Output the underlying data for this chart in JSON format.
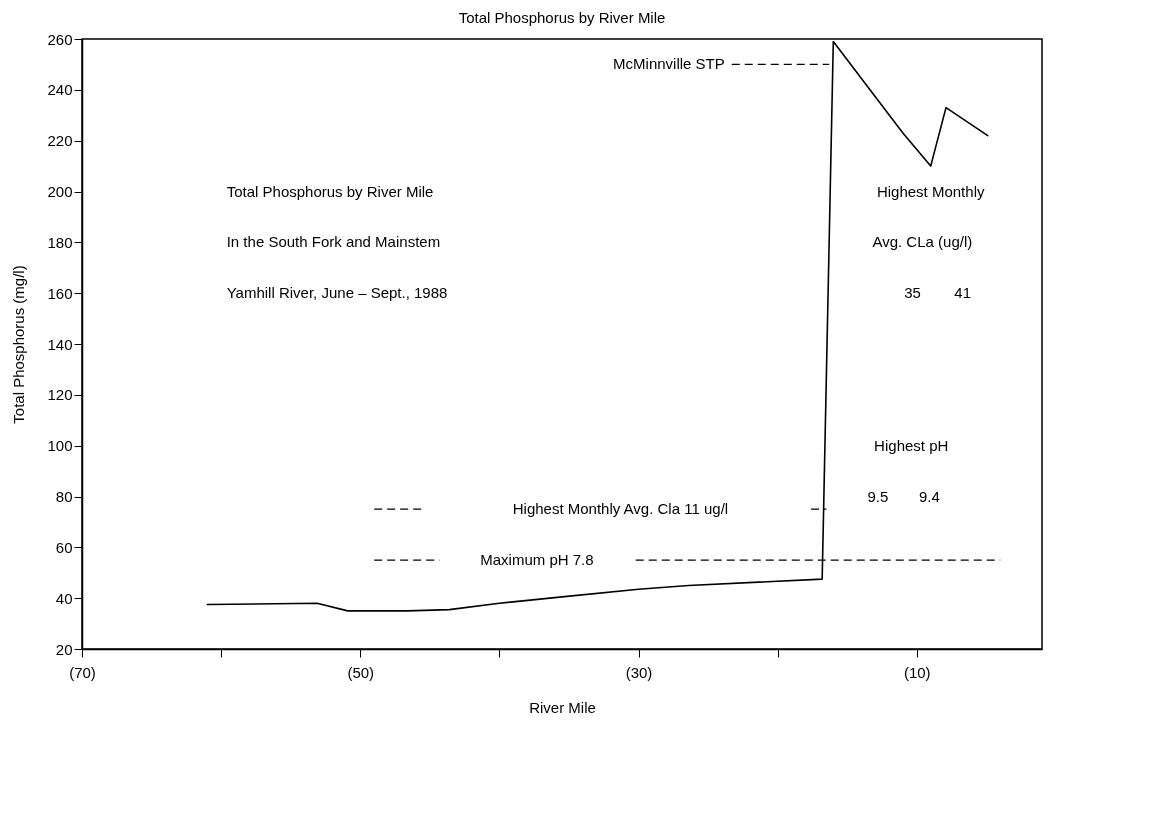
{
  "chart_data": {
    "type": "line",
    "title": "Total Phosphorus by River Mile",
    "xlabel": "River Mile",
    "ylabel": "Total Phosphorus (mg/l)",
    "series": [
      {
        "color": "#000000",
        "x": [
          -61.0,
          -53.1,
          -50.9,
          -46.6,
          -43.6,
          -40.0,
          -35.5,
          -30.0,
          -26.4,
          -16.8,
          -16.0,
          -11.0,
          -9.0,
          -7.9,
          -4.9
        ],
        "values": [
          37.5,
          38,
          35,
          35,
          35.5,
          38,
          40.5,
          43.5,
          45,
          47.5,
          259,
          223,
          210,
          233,
          222
        ]
      }
    ],
    "xlim": [
      -70,
      -1
    ],
    "xticks": [
      {
        "value": -70,
        "label": "(70)"
      },
      {
        "value": -60,
        "label": null
      },
      {
        "value": -50,
        "label": "(50)"
      },
      {
        "value": -40,
        "label": null
      },
      {
        "value": -30,
        "label": "(30)"
      },
      {
        "value": -20,
        "label": null
      },
      {
        "value": -10,
        "label": "(10)"
      }
    ],
    "ylim": [
      20,
      260
    ],
    "yticks": [
      20,
      40,
      60,
      80,
      100,
      120,
      140,
      160,
      180,
      200,
      220,
      240,
      260
    ],
    "annotations": [
      "Total Phosphorus by River Mile",
      "In the South Fork and Mainstem",
      "Yamhill River, June – Sept., 1988",
      "Highest Monthly",
      "Avg. CLa (ug/l)",
      "35",
      "41",
      "Highest pH",
      "9.5",
      "9.4",
      {
        "text": "McMinnville STP",
        "x": -16.3,
        "y": 250
      },
      "Highest Monthly Avg. Cla 11 ug/l",
      "Maximum pH 7.8"
    ]
  }
}
